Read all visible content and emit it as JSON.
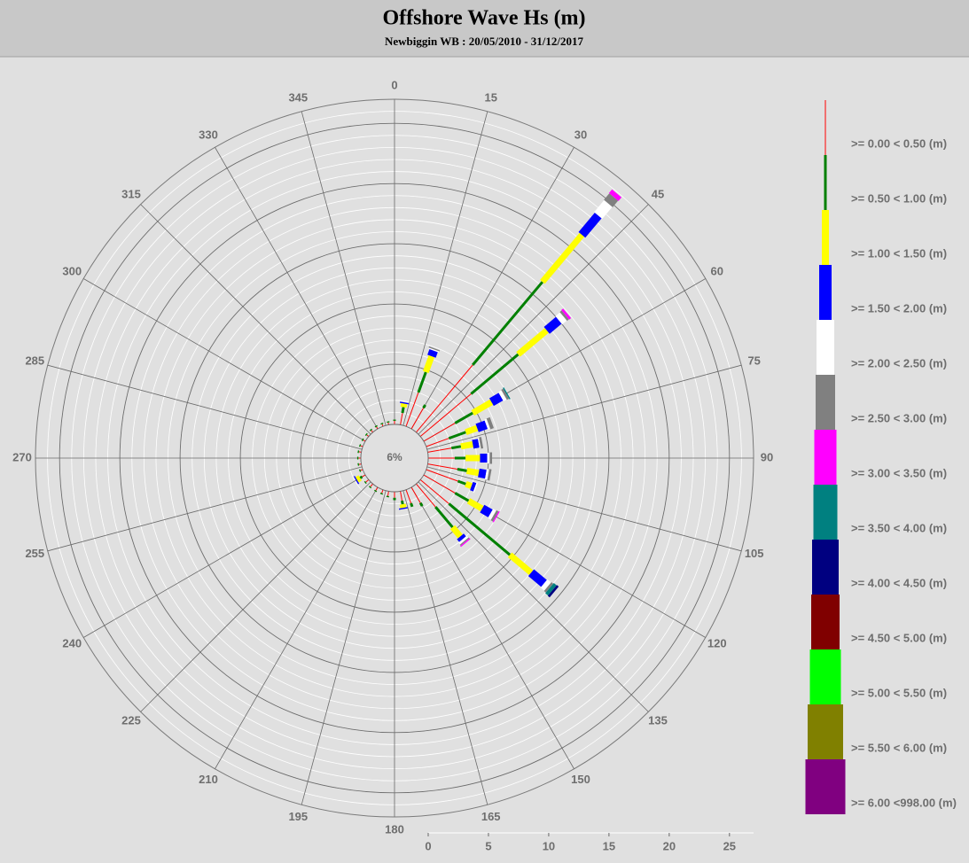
{
  "chart_data": {
    "type": "wave_rose",
    "title": "Offshore Wave Hs (m)",
    "subtitle": "Newbiggin WB : 20/05/2010 - 31/12/2017",
    "center_label": "6%",
    "directions": [
      0,
      10,
      20,
      30,
      40,
      50,
      60,
      70,
      80,
      90,
      100,
      110,
      120,
      130,
      140,
      150,
      160,
      170,
      180,
      190,
      200,
      210,
      220,
      230,
      240,
      250,
      260,
      270,
      280,
      290,
      300,
      310,
      320,
      330,
      340,
      350
    ],
    "thetaticks": [
      0,
      15,
      30,
      45,
      60,
      75,
      90,
      105,
      120,
      135,
      150,
      165,
      180,
      195,
      210,
      225,
      240,
      255,
      270,
      285,
      300,
      315,
      330,
      345
    ],
    "rlim": [
      0,
      27
    ],
    "rticks": [
      0,
      5,
      10,
      15,
      20,
      25
    ],
    "grid": true,
    "series": [
      {
        "name": ">= 0.00 < 0.50 (m)",
        "color": "#ff0000",
        "values": [
          0.3,
          1.0,
          3.0,
          2.0,
          7.3,
          5.5,
          3.0,
          2.0,
          2.0,
          2.2,
          2.5,
          2.8,
          3.0,
          3.1,
          2.5,
          1.5,
          1.2,
          0.8,
          0.5,
          0.4,
          0.3,
          0.3,
          0.3,
          0.3,
          0.3,
          0.2,
          0.2,
          0.2,
          0.2,
          0.2,
          0.2,
          0.2,
          0.2,
          0.2,
          0.2,
          0.2
        ]
      },
      {
        "name": ">= 0.50 < 1.00 (m)",
        "color": "#008000",
        "values": [
          0.1,
          0.5,
          1.8,
          0.3,
          9.0,
          5.1,
          1.7,
          1.5,
          0.8,
          0.9,
          0.8,
          0.7,
          1.3,
          6.6,
          2.2,
          0.3,
          0.3,
          0.3,
          0.2,
          0.1,
          0.1,
          0.1,
          0.1,
          0.1,
          0.2,
          0.1,
          0.1,
          0.1,
          0.1,
          0.1,
          0.1,
          0.1,
          0.1,
          0.1,
          0.1,
          0.1
        ]
      },
      {
        "name": ">= 1.00 < 1.50 (m)",
        "color": "#ffff00",
        "values": [
          0,
          0.3,
          1.4,
          0,
          5.1,
          3.1,
          1.8,
          1.0,
          1.0,
          1.2,
          1.0,
          0.5,
          1.3,
          2.3,
          1.0,
          0,
          0,
          0.3,
          0,
          0,
          0,
          0,
          0,
          0,
          0.3,
          0,
          0,
          0,
          0,
          0,
          0,
          0,
          0,
          0,
          0,
          0
        ]
      },
      {
        "name": ">= 1.50 < 2.00 (m)",
        "color": "#0000ff",
        "values": [
          0,
          0.1,
          0.5,
          0,
          2.1,
          1.3,
          0.9,
          0.8,
          0.5,
          0.6,
          0.6,
          0.3,
          0.8,
          1.4,
          0.3,
          0,
          0,
          0.1,
          0,
          0,
          0,
          0,
          0,
          0,
          0.1,
          0,
          0,
          0,
          0,
          0,
          0,
          0,
          0,
          0,
          0,
          0
        ]
      },
      {
        "name": ">= 2.00 < 2.50 (m)",
        "color": "#ffffff",
        "values": [
          0,
          0,
          0.1,
          0,
          1.3,
          0.5,
          0.3,
          0.2,
          0.1,
          0.2,
          0.2,
          0.1,
          0.3,
          0.4,
          0.2,
          0,
          0,
          0,
          0,
          0,
          0,
          0,
          0,
          0,
          0,
          0,
          0,
          0,
          0,
          0,
          0,
          0,
          0,
          0,
          0,
          0
        ]
      },
      {
        "name": ">= 2.50 < 3.00 (m)",
        "color": "#808080",
        "values": [
          0,
          0,
          0.1,
          0,
          0.7,
          0.2,
          0.2,
          0.3,
          0.2,
          0.2,
          0.2,
          0,
          0.2,
          0.2,
          0.1,
          0,
          0,
          0,
          0,
          0,
          0,
          0,
          0,
          0,
          0,
          0,
          0,
          0,
          0,
          0,
          0,
          0,
          0,
          0,
          0,
          0
        ]
      },
      {
        "name": ">= 3.00 < 3.50 (m)",
        "color": "#ff00ff",
        "values": [
          0,
          0,
          0,
          0,
          0.4,
          0.2,
          0,
          0,
          0,
          0,
          0,
          0,
          0.1,
          0,
          0.1,
          0,
          0,
          0,
          0,
          0,
          0,
          0,
          0,
          0,
          0,
          0,
          0,
          0,
          0,
          0,
          0,
          0,
          0,
          0,
          0,
          0
        ]
      },
      {
        "name": ">= 3.50 < 4.00 (m)",
        "color": "#008080",
        "values": [
          0,
          0,
          0,
          0,
          0,
          0,
          0.1,
          0,
          0,
          0,
          0,
          0,
          0,
          0.3,
          0,
          0,
          0,
          0,
          0,
          0,
          0,
          0,
          0,
          0,
          0,
          0,
          0,
          0,
          0,
          0,
          0,
          0,
          0,
          0,
          0,
          0
        ]
      },
      {
        "name": ">= 4.00 < 4.50 (m)",
        "color": "#000080",
        "values": [
          0,
          0,
          0,
          0,
          0,
          0,
          0,
          0,
          0,
          0,
          0,
          0,
          0,
          0.2,
          0,
          0,
          0,
          0,
          0,
          0,
          0,
          0,
          0,
          0,
          0,
          0,
          0,
          0,
          0,
          0,
          0,
          0,
          0,
          0,
          0,
          0
        ]
      },
      {
        "name": ">= 4.50 < 5.00 (m)",
        "color": "#800000",
        "values": [
          0,
          0,
          0,
          0,
          0,
          0,
          0,
          0,
          0,
          0,
          0,
          0,
          0,
          0,
          0,
          0,
          0,
          0,
          0,
          0,
          0,
          0,
          0,
          0,
          0,
          0,
          0,
          0,
          0,
          0,
          0,
          0,
          0,
          0,
          0,
          0
        ]
      },
      {
        "name": ">= 5.00 < 5.50 (m)",
        "color": "#00ff00",
        "values": [
          0,
          0,
          0,
          0,
          0,
          0,
          0,
          0,
          0,
          0,
          0,
          0,
          0,
          0,
          0,
          0,
          0,
          0,
          0,
          0,
          0,
          0,
          0,
          0,
          0,
          0,
          0,
          0,
          0,
          0,
          0,
          0,
          0,
          0,
          0,
          0
        ]
      },
      {
        "name": ">= 5.50 < 6.00 (m)",
        "color": "#808000",
        "values": [
          0,
          0,
          0,
          0,
          0,
          0,
          0,
          0,
          0,
          0,
          0,
          0,
          0,
          0,
          0,
          0,
          0,
          0,
          0,
          0,
          0,
          0,
          0,
          0,
          0,
          0,
          0,
          0,
          0,
          0,
          0,
          0,
          0,
          0,
          0,
          0
        ]
      },
      {
        "name": ">= 6.00 <998.00 (m)",
        "color": "#800080",
        "values": [
          0,
          0,
          0,
          0,
          0,
          0,
          0,
          0,
          0,
          0,
          0,
          0,
          0,
          0,
          0,
          0,
          0,
          0,
          0,
          0,
          0,
          0,
          0,
          0,
          0,
          0,
          0,
          0,
          0,
          0,
          0,
          0,
          0,
          0,
          0,
          0
        ]
      }
    ]
  }
}
